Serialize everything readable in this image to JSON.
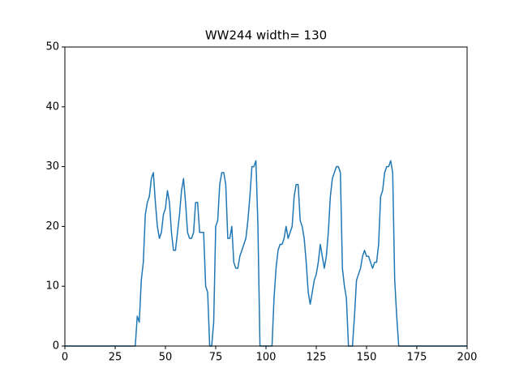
{
  "chart_data": {
    "type": "line",
    "title": "WW244 width= 130",
    "x": [
      0,
      35,
      36,
      37,
      38,
      39,
      40,
      41,
      42,
      43,
      44,
      45,
      46,
      47,
      48,
      49,
      50,
      51,
      52,
      53,
      54,
      55,
      56,
      57,
      58,
      59,
      60,
      61,
      62,
      63,
      64,
      65,
      66,
      67,
      68,
      69,
      70,
      71,
      72,
      73,
      74,
      75,
      76,
      77,
      78,
      79,
      80,
      81,
      82,
      83,
      84,
      85,
      86,
      87,
      88,
      89,
      90,
      91,
      92,
      93,
      94,
      95,
      96,
      97,
      98,
      99,
      100,
      101,
      102,
      103,
      104,
      105,
      106,
      107,
      108,
      109,
      110,
      111,
      112,
      113,
      114,
      115,
      116,
      117,
      118,
      119,
      120,
      121,
      122,
      123,
      124,
      125,
      126,
      127,
      128,
      129,
      130,
      131,
      132,
      133,
      134,
      135,
      136,
      137,
      138,
      139,
      140,
      141,
      142,
      143,
      144,
      145,
      146,
      147,
      148,
      149,
      150,
      151,
      152,
      153,
      154,
      155,
      156,
      157,
      158,
      159,
      160,
      161,
      162,
      163,
      164,
      165,
      166,
      200
    ],
    "series": [
      {
        "name": "WW244",
        "color": "#1f77b4",
        "values": [
          0,
          0,
          5,
          4,
          11,
          14,
          22,
          24,
          25,
          28,
          29,
          24,
          20,
          18,
          19,
          22,
          23,
          26,
          24,
          19,
          16,
          16,
          19,
          22,
          26,
          28,
          24,
          19,
          18,
          18,
          19,
          24,
          24,
          19,
          19,
          19,
          10,
          9,
          0,
          0,
          4,
          20,
          21,
          27,
          29,
          29,
          27,
          18,
          18,
          20,
          14,
          13,
          13,
          15,
          16,
          17,
          18,
          21,
          25,
          30,
          30,
          31,
          20,
          0,
          0,
          0,
          0,
          0,
          0,
          0,
          8,
          13,
          16,
          17,
          17,
          18,
          20,
          18,
          19,
          20,
          25,
          27,
          27,
          21,
          20,
          18,
          14,
          9,
          7,
          9,
          11,
          12,
          14,
          17,
          15,
          13,
          15,
          19,
          25,
          28,
          29,
          30,
          30,
          29,
          13,
          10,
          8,
          0,
          0,
          0,
          5,
          11,
          12,
          13,
          15,
          16,
          15,
          15,
          14,
          13,
          14,
          14,
          17,
          25,
          26,
          29,
          30,
          30,
          31,
          29,
          11,
          5,
          0,
          0
        ]
      }
    ],
    "xlim": [
      0,
      200
    ],
    "xticks": [
      0,
      25,
      50,
      75,
      100,
      125,
      150,
      175,
      200
    ],
    "ylim": [
      0,
      50
    ],
    "yticks": [
      0,
      10,
      20,
      30,
      40,
      50
    ]
  }
}
